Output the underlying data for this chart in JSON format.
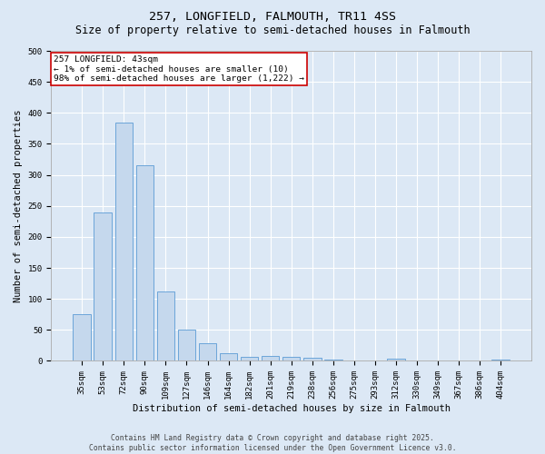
{
  "title": "257, LONGFIELD, FALMOUTH, TR11 4SS",
  "subtitle": "Size of property relative to semi-detached houses in Falmouth",
  "xlabel": "Distribution of semi-detached houses by size in Falmouth",
  "ylabel": "Number of semi-detached properties",
  "categories": [
    "35sqm",
    "53sqm",
    "72sqm",
    "90sqm",
    "109sqm",
    "127sqm",
    "146sqm",
    "164sqm",
    "182sqm",
    "201sqm",
    "219sqm",
    "238sqm",
    "256sqm",
    "275sqm",
    "293sqm",
    "312sqm",
    "330sqm",
    "349sqm",
    "367sqm",
    "386sqm",
    "404sqm"
  ],
  "values": [
    75,
    240,
    385,
    315,
    112,
    50,
    29,
    13,
    7,
    8,
    7,
    5,
    2,
    0,
    0,
    3,
    0,
    0,
    0,
    0,
    2
  ],
  "bar_color": "#c5d8ed",
  "bar_edge_color": "#5b9bd5",
  "annotation_label": "257 LONGFIELD: 43sqm",
  "annotation_line1": "← 1% of semi-detached houses are smaller (10)",
  "annotation_line2": "98% of semi-detached houses are larger (1,222) →",
  "annotation_box_color": "#ffffff",
  "annotation_box_edge": "#cc0000",
  "footer_line1": "Contains HM Land Registry data © Crown copyright and database right 2025.",
  "footer_line2": "Contains public sector information licensed under the Open Government Licence v3.0.",
  "bg_color": "#dce8f5",
  "plot_bg_color": "#dce8f5",
  "ylim": [
    0,
    500
  ],
  "yticks": [
    0,
    50,
    100,
    150,
    200,
    250,
    300,
    350,
    400,
    450,
    500
  ],
  "grid_color": "#ffffff",
  "title_fontsize": 9.5,
  "subtitle_fontsize": 8.5,
  "axis_label_fontsize": 7.5,
  "tick_fontsize": 6.5,
  "annotation_fontsize": 6.8,
  "footer_fontsize": 5.8
}
